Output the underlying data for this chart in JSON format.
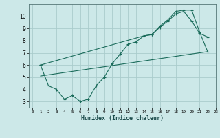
{
  "xlabel": "Humidex (Indice chaleur)",
  "ylabel": "",
  "bg_color": "#cce8e8",
  "grid_color": "#aacccc",
  "line_color": "#1a6b5a",
  "xlim": [
    -0.5,
    23
  ],
  "ylim": [
    2.5,
    11.0
  ],
  "xticks": [
    0,
    1,
    2,
    3,
    4,
    5,
    6,
    7,
    8,
    9,
    10,
    11,
    12,
    13,
    14,
    15,
    16,
    17,
    18,
    19,
    20,
    21,
    22,
    23
  ],
  "yticks": [
    3,
    4,
    5,
    6,
    7,
    8,
    9,
    10
  ],
  "line1_x": [
    1,
    2,
    3,
    4,
    5,
    6,
    7,
    8,
    9,
    10,
    11,
    12,
    13,
    14,
    15,
    16,
    17,
    18,
    19,
    20,
    21,
    22
  ],
  "line1_y": [
    6.0,
    4.3,
    4.0,
    3.2,
    3.5,
    3.0,
    3.2,
    4.3,
    5.0,
    6.1,
    6.9,
    7.7,
    7.9,
    8.4,
    8.5,
    9.1,
    9.6,
    10.2,
    10.4,
    9.6,
    8.6,
    8.3
  ],
  "line2_x": [
    1,
    14,
    15,
    16,
    17,
    18,
    19,
    20,
    21,
    22
  ],
  "line2_y": [
    6.0,
    8.4,
    8.5,
    9.2,
    9.7,
    10.4,
    10.5,
    10.5,
    8.7,
    7.1
  ],
  "line3_x": [
    1,
    22
  ],
  "line3_y": [
    5.1,
    7.1
  ]
}
